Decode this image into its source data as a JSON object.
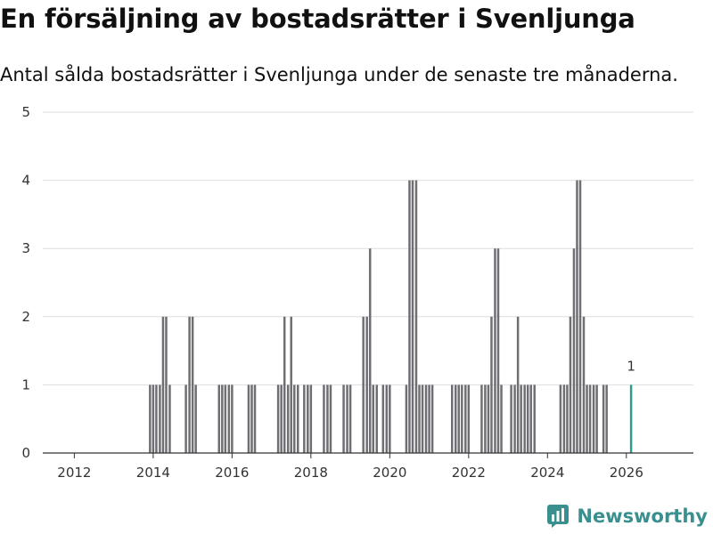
{
  "title": "En försäljning av bostadsrätter i Svenljunga",
  "subtitle": "Antal sålda bostadsrätter i Svenljunga under de senaste tre månaderna.",
  "brand": {
    "name": "Newsworthy",
    "color": "#3a8f8f"
  },
  "colors": {
    "bar": "#6e6e73",
    "highlight": "#2a9d8f",
    "grid": "#dddddd",
    "axis": "#333333"
  },
  "chart_data": {
    "type": "bar",
    "title": "En försäljning av bostadsrätter i Svenljunga",
    "xlabel": "",
    "ylabel": "",
    "xlim": [
      2011.2,
      2027.7
    ],
    "ylim": [
      0,
      5
    ],
    "x_ticks": [
      2012,
      2014,
      2016,
      2018,
      2020,
      2022,
      2024,
      2026
    ],
    "y_ticks": [
      0,
      1,
      2,
      3,
      4,
      5
    ],
    "bar_width": 0.0833,
    "series": [
      {
        "name": "Sålda bostadsrätter",
        "points": [
          {
            "x": 2013.92,
            "y": 1
          },
          {
            "x": 2014.0,
            "y": 1
          },
          {
            "x": 2014.08,
            "y": 1
          },
          {
            "x": 2014.17,
            "y": 1
          },
          {
            "x": 2014.25,
            "y": 2
          },
          {
            "x": 2014.33,
            "y": 2
          },
          {
            "x": 2014.42,
            "y": 1
          },
          {
            "x": 2014.83,
            "y": 1
          },
          {
            "x": 2014.92,
            "y": 2
          },
          {
            "x": 2015.0,
            "y": 2
          },
          {
            "x": 2015.08,
            "y": 1
          },
          {
            "x": 2015.67,
            "y": 1
          },
          {
            "x": 2015.75,
            "y": 1
          },
          {
            "x": 2015.83,
            "y": 1
          },
          {
            "x": 2015.92,
            "y": 1
          },
          {
            "x": 2016.0,
            "y": 1
          },
          {
            "x": 2016.42,
            "y": 1
          },
          {
            "x": 2016.5,
            "y": 1
          },
          {
            "x": 2016.58,
            "y": 1
          },
          {
            "x": 2017.17,
            "y": 1
          },
          {
            "x": 2017.25,
            "y": 1
          },
          {
            "x": 2017.33,
            "y": 2
          },
          {
            "x": 2017.42,
            "y": 1
          },
          {
            "x": 2017.5,
            "y": 2
          },
          {
            "x": 2017.58,
            "y": 1
          },
          {
            "x": 2017.67,
            "y": 1
          },
          {
            "x": 2017.83,
            "y": 1
          },
          {
            "x": 2017.92,
            "y": 1
          },
          {
            "x": 2018.0,
            "y": 1
          },
          {
            "x": 2018.33,
            "y": 1
          },
          {
            "x": 2018.42,
            "y": 1
          },
          {
            "x": 2018.5,
            "y": 1
          },
          {
            "x": 2018.83,
            "y": 1
          },
          {
            "x": 2018.92,
            "y": 1
          },
          {
            "x": 2019.0,
            "y": 1
          },
          {
            "x": 2019.33,
            "y": 2
          },
          {
            "x": 2019.42,
            "y": 2
          },
          {
            "x": 2019.5,
            "y": 3
          },
          {
            "x": 2019.58,
            "y": 1
          },
          {
            "x": 2019.67,
            "y": 1
          },
          {
            "x": 2019.83,
            "y": 1
          },
          {
            "x": 2019.92,
            "y": 1
          },
          {
            "x": 2020.0,
            "y": 1
          },
          {
            "x": 2020.42,
            "y": 1
          },
          {
            "x": 2020.5,
            "y": 4
          },
          {
            "x": 2020.58,
            "y": 4
          },
          {
            "x": 2020.67,
            "y": 4
          },
          {
            "x": 2020.75,
            "y": 1
          },
          {
            "x": 2020.83,
            "y": 1
          },
          {
            "x": 2020.92,
            "y": 1
          },
          {
            "x": 2021.0,
            "y": 1
          },
          {
            "x": 2021.08,
            "y": 1
          },
          {
            "x": 2021.58,
            "y": 1
          },
          {
            "x": 2021.67,
            "y": 1
          },
          {
            "x": 2021.75,
            "y": 1
          },
          {
            "x": 2021.83,
            "y": 1
          },
          {
            "x": 2021.92,
            "y": 1
          },
          {
            "x": 2022.0,
            "y": 1
          },
          {
            "x": 2022.33,
            "y": 1
          },
          {
            "x": 2022.42,
            "y": 1
          },
          {
            "x": 2022.5,
            "y": 1
          },
          {
            "x": 2022.58,
            "y": 2
          },
          {
            "x": 2022.67,
            "y": 3
          },
          {
            "x": 2022.75,
            "y": 3
          },
          {
            "x": 2022.83,
            "y": 1
          },
          {
            "x": 2023.08,
            "y": 1
          },
          {
            "x": 2023.17,
            "y": 1
          },
          {
            "x": 2023.25,
            "y": 2
          },
          {
            "x": 2023.33,
            "y": 1
          },
          {
            "x": 2023.42,
            "y": 1
          },
          {
            "x": 2023.5,
            "y": 1
          },
          {
            "x": 2023.58,
            "y": 1
          },
          {
            "x": 2023.67,
            "y": 1
          },
          {
            "x": 2024.33,
            "y": 1
          },
          {
            "x": 2024.42,
            "y": 1
          },
          {
            "x": 2024.5,
            "y": 1
          },
          {
            "x": 2024.58,
            "y": 2
          },
          {
            "x": 2024.67,
            "y": 3
          },
          {
            "x": 2024.75,
            "y": 4
          },
          {
            "x": 2024.83,
            "y": 4
          },
          {
            "x": 2024.92,
            "y": 2
          },
          {
            "x": 2025.0,
            "y": 1
          },
          {
            "x": 2025.08,
            "y": 1
          },
          {
            "x": 2025.17,
            "y": 1
          },
          {
            "x": 2025.25,
            "y": 1
          },
          {
            "x": 2025.42,
            "y": 1
          },
          {
            "x": 2025.5,
            "y": 1
          }
        ]
      },
      {
        "name": "Senaste tre månaderna",
        "points": [
          {
            "x": 2026.12,
            "y": 1
          }
        ]
      }
    ],
    "annotations": [
      {
        "x": 2026.12,
        "y": 1,
        "text": "1"
      }
    ]
  }
}
